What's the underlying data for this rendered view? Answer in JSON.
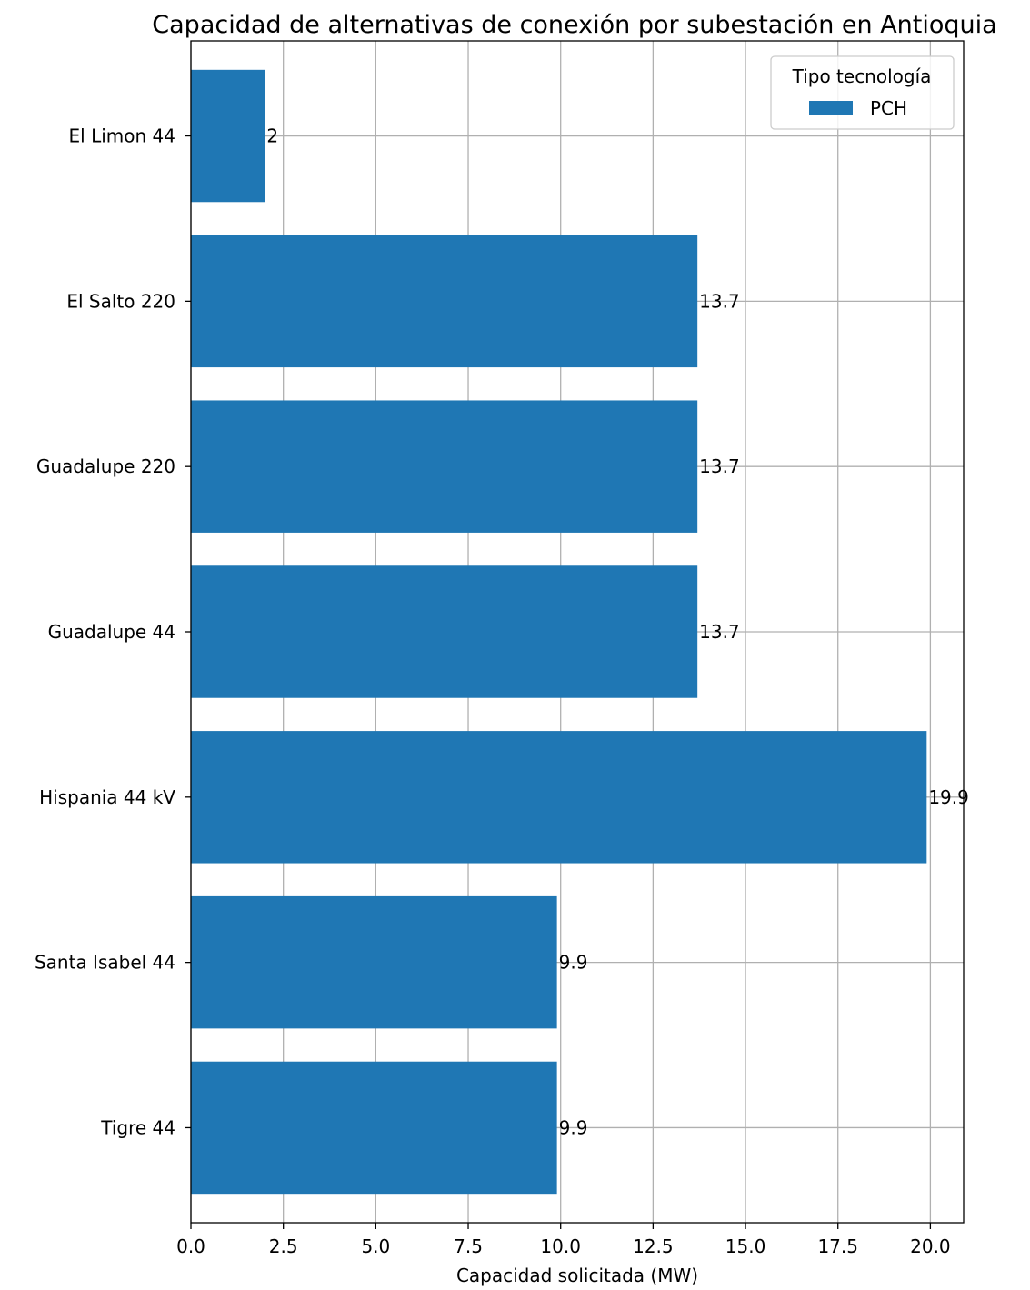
{
  "chart_data": {
    "type": "bar",
    "orientation": "horizontal",
    "title": "Capacidad de alternativas de conexión por subestación en Antioquia",
    "xlabel": "Capacidad solicitada (MW)",
    "ylabel": "",
    "xlim": [
      0,
      20.9
    ],
    "xticks": [
      "0.0",
      "2.5",
      "5.0",
      "7.5",
      "10.0",
      "12.5",
      "15.0",
      "17.5",
      "20.0"
    ],
    "grid": true,
    "legend": {
      "title": "Tipo tecnología",
      "placement": "top-right",
      "entries": [
        "PCH"
      ]
    },
    "categories": [
      "El Limon 44",
      "El Salto 220",
      "Guadalupe 220",
      "Guadalupe 44",
      "Hispania 44 kV",
      "Santa Isabel 44",
      "Tigre 44"
    ],
    "series": [
      {
        "name": "PCH",
        "color": "#1f77b4",
        "values": [
          2,
          13.7,
          13.7,
          13.7,
          19.9,
          9.9,
          9.9
        ],
        "labels": [
          "2",
          "13.7",
          "13.7",
          "13.7",
          "19.9",
          "9.9",
          "9.9"
        ]
      }
    ]
  }
}
